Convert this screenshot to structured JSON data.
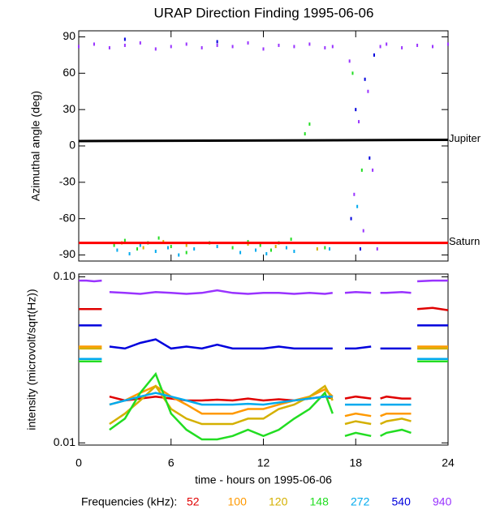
{
  "title": "URAP Direction Finding  1995-06-06",
  "legend_title": "Frequencies (kHz):",
  "chart_data": [
    {
      "type": "scatter",
      "ylabel": "Azimuthal angle (deg)",
      "xlim": [
        0,
        24
      ],
      "xticks": [
        0,
        6,
        12,
        18,
        24
      ],
      "ylim": [
        -95,
        95
      ],
      "yticks": [
        -90,
        -60,
        -30,
        0,
        30,
        60,
        90
      ],
      "reference_lines": [
        {
          "label": "Jupiter",
          "color": "#000000",
          "x": [
            0,
            24
          ],
          "values": [
            4,
            5
          ]
        },
        {
          "label": "Saturn",
          "color": "#ff0000",
          "x": [
            0,
            24
          ],
          "values": [
            -80,
            -80
          ]
        }
      ],
      "series": [
        {
          "name": "940",
          "color": "#9933ff",
          "x": [
            0,
            1,
            2,
            3,
            4,
            5,
            6,
            7,
            8,
            9,
            10,
            11,
            12,
            13,
            14,
            15,
            16,
            16.5,
            17.6,
            17.9,
            18.2,
            18.5,
            18.8,
            19.1,
            19.4,
            19.6,
            20,
            21,
            22,
            23,
            24
          ],
          "values": [
            82,
            84,
            81,
            83,
            85,
            80,
            82,
            84,
            81,
            83,
            82,
            85,
            80,
            83,
            82,
            84,
            81,
            82,
            70,
            -40,
            20,
            -70,
            45,
            -20,
            -85,
            82,
            84,
            81,
            83,
            82,
            84
          ]
        },
        {
          "name": "540",
          "color": "#0000dd",
          "x": [
            3,
            9,
            17.7,
            18,
            18.3,
            18.6,
            18.9,
            19.2
          ],
          "values": [
            88,
            86,
            -60,
            30,
            -85,
            55,
            -10,
            75
          ]
        },
        {
          "name": "148",
          "color": "#22dd22",
          "x": [
            2.3,
            3,
            3.8,
            4.5,
            5.2,
            6,
            7,
            8.5,
            10,
            11,
            11.8,
            12.5,
            13,
            13.8,
            14.7,
            15,
            16,
            17.8,
            18.4
          ],
          "values": [
            -82,
            -78,
            -85,
            -80,
            -76,
            -83,
            -88,
            -80,
            -84,
            -79,
            -82,
            -86,
            -80,
            -77,
            10,
            18,
            -84,
            60,
            -20
          ]
        },
        {
          "name": "272",
          "color": "#00aaee",
          "x": [
            2.5,
            3.3,
            4,
            5,
            5.8,
            6.5,
            7.5,
            9,
            10.5,
            11.5,
            12.2,
            13.5,
            14,
            16.3,
            18.1
          ],
          "values": [
            -86,
            -89,
            -82,
            -87,
            -84,
            -90,
            -85,
            -83,
            -88,
            -86,
            -89,
            -84,
            -87,
            -85,
            -50
          ]
        },
        {
          "name": "120",
          "color": "#d4b000",
          "x": [
            2.8,
            4.2,
            5.5,
            7,
            11,
            12.8,
            15.5
          ],
          "values": [
            -80,
            -84,
            -79,
            -82,
            -81,
            -83,
            -85
          ]
        }
      ]
    },
    {
      "type": "line",
      "log_scale": true,
      "ylabel": "intensity (microvolt/sqrt(Hz))",
      "xlabel": "time - hours on 1995-06-06",
      "xlim": [
        0,
        24
      ],
      "xticks": [
        0,
        6,
        12,
        18,
        24
      ],
      "ylim": [
        0.0097,
        0.104
      ],
      "yticks": [
        0.01,
        {
          "value": 0.1,
          "label": "0.10"
        }
      ],
      "series": [
        {
          "name": "52",
          "color": "#e00000",
          "x": [
            0,
            0.5,
            1,
            1.5,
            1.7,
            2,
            3,
            4,
            5,
            6,
            7,
            8,
            9,
            10,
            11,
            12,
            13,
            14,
            15,
            16,
            16.5,
            16.9,
            17.3,
            18,
            19,
            19.4,
            19.6,
            20,
            21,
            21.6,
            21.8,
            22,
            23,
            24
          ],
          "values": [
            0.064,
            0.064,
            0.064,
            0.064,
            null,
            0.019,
            0.018,
            0.0185,
            0.019,
            0.0185,
            0.018,
            0.018,
            0.0182,
            0.018,
            0.0185,
            0.018,
            0.0183,
            0.018,
            0.0185,
            0.019,
            0.0185,
            null,
            0.0185,
            0.019,
            0.0185,
            null,
            0.0185,
            0.019,
            0.0185,
            0.0185,
            null,
            0.064,
            0.065,
            0.063
          ]
        },
        {
          "name": "100",
          "color": "#ff9900",
          "x": [
            0,
            0.5,
            1,
            1.5,
            1.7,
            2,
            3,
            4,
            5,
            6,
            7,
            8,
            9,
            10,
            11,
            12,
            13,
            14,
            15,
            16,
            16.5,
            16.9,
            17.3,
            18,
            19,
            19.4,
            19.6,
            20,
            21,
            21.6,
            21.8,
            22,
            23,
            24
          ],
          "values": [
            0.038,
            0.038,
            0.038,
            0.038,
            null,
            0.017,
            0.018,
            0.02,
            0.022,
            0.019,
            0.017,
            0.015,
            0.015,
            0.015,
            0.016,
            0.016,
            0.017,
            0.018,
            0.019,
            0.021,
            0.019,
            null,
            0.0145,
            0.015,
            0.0145,
            null,
            0.0145,
            0.015,
            0.015,
            0.015,
            null,
            0.038,
            0.038,
            0.038
          ]
        },
        {
          "name": "120",
          "color": "#d4b000",
          "x": [
            0,
            0.5,
            1,
            1.5,
            1.7,
            2,
            3,
            4,
            5,
            6,
            7,
            8,
            9,
            10,
            11,
            12,
            13,
            14,
            15,
            16,
            16.5,
            16.9,
            17.3,
            18,
            19,
            19.4,
            19.6,
            20,
            21,
            21.6,
            21.8,
            22,
            23,
            24
          ],
          "values": [
            0.037,
            0.037,
            0.037,
            0.037,
            null,
            0.013,
            0.015,
            0.018,
            0.022,
            0.016,
            0.014,
            0.013,
            0.013,
            0.013,
            0.014,
            0.014,
            0.016,
            0.017,
            0.019,
            0.022,
            0.018,
            null,
            0.013,
            0.0135,
            0.013,
            null,
            0.013,
            0.0135,
            0.014,
            0.0135,
            null,
            0.037,
            0.037,
            0.037
          ]
        },
        {
          "name": "148",
          "color": "#22dd22",
          "x": [
            0,
            0.5,
            1,
            1.5,
            1.7,
            2,
            3,
            4,
            5,
            6,
            7,
            8,
            9,
            10,
            11,
            12,
            13,
            14,
            15,
            16,
            16.5,
            16.9,
            17.3,
            18,
            19,
            19.4,
            19.6,
            20,
            21,
            21.6,
            21.8,
            22,
            23,
            24
          ],
          "values": [
            0.031,
            0.031,
            0.031,
            0.031,
            null,
            0.012,
            0.014,
            0.02,
            0.026,
            0.015,
            0.012,
            0.0105,
            0.0105,
            0.011,
            0.012,
            0.011,
            0.012,
            0.014,
            0.016,
            0.02,
            0.015,
            null,
            0.011,
            0.0115,
            0.011,
            null,
            0.011,
            0.0115,
            0.012,
            0.0115,
            null,
            0.031,
            0.031,
            0.031
          ]
        },
        {
          "name": "272",
          "color": "#00aaee",
          "x": [
            0,
            0.5,
            1,
            1.5,
            1.7,
            2,
            3,
            4,
            5,
            6,
            7,
            8,
            9,
            10,
            11,
            12,
            13,
            14,
            15,
            16,
            16.5,
            16.9,
            17.3,
            18,
            19,
            19.4,
            19.6,
            20,
            21,
            21.6,
            21.8,
            22,
            23,
            24
          ],
          "values": [
            0.032,
            0.032,
            0.032,
            0.032,
            null,
            0.017,
            0.018,
            0.019,
            0.02,
            0.019,
            0.018,
            0.017,
            0.017,
            0.017,
            0.0172,
            0.017,
            0.0175,
            0.018,
            0.0185,
            0.019,
            0.019,
            null,
            0.017,
            0.017,
            0.017,
            null,
            0.017,
            0.017,
            0.017,
            0.017,
            null,
            0.032,
            0.032,
            0.032
          ]
        },
        {
          "name": "540",
          "color": "#0000dd",
          "x": [
            0,
            0.5,
            1,
            1.5,
            1.7,
            2,
            3,
            4,
            5,
            6,
            7,
            8,
            9,
            10,
            11,
            12,
            13,
            14,
            15,
            16,
            16.5,
            16.9,
            17.3,
            18,
            19,
            19.4,
            19.6,
            20,
            21,
            21.6,
            21.8,
            22,
            23,
            24
          ],
          "values": [
            0.051,
            0.051,
            0.051,
            0.051,
            null,
            0.038,
            0.037,
            0.04,
            0.042,
            0.037,
            0.038,
            0.037,
            0.039,
            0.037,
            0.037,
            0.037,
            0.038,
            0.037,
            0.037,
            0.037,
            0.037,
            null,
            0.037,
            0.037,
            0.038,
            null,
            0.037,
            0.037,
            0.037,
            0.037,
            null,
            0.051,
            0.051,
            0.051
          ]
        },
        {
          "name": "940",
          "color": "#9933ff",
          "x": [
            0,
            0.5,
            1,
            1.5,
            1.7,
            2,
            3,
            4,
            5,
            6,
            7,
            8,
            9,
            10,
            11,
            12,
            13,
            14,
            15,
            16,
            16.5,
            16.9,
            17.3,
            18,
            19,
            19.4,
            19.6,
            20,
            21,
            21.6,
            21.8,
            22,
            23,
            24
          ],
          "values": [
            0.095,
            0.095,
            0.094,
            0.095,
            null,
            0.081,
            0.08,
            0.079,
            0.081,
            0.08,
            0.079,
            0.08,
            0.083,
            0.08,
            0.079,
            0.08,
            0.08,
            0.079,
            0.08,
            0.079,
            0.08,
            null,
            0.08,
            0.081,
            0.08,
            null,
            0.08,
            0.08,
            0.081,
            0.08,
            null,
            0.094,
            0.095,
            0.095
          ]
        }
      ]
    }
  ]
}
